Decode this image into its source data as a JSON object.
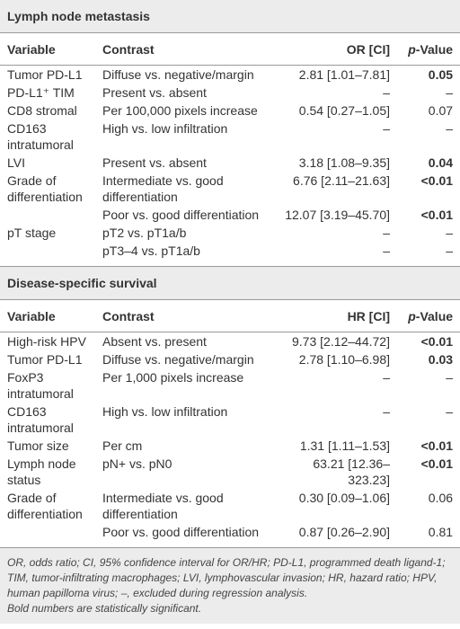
{
  "sections": [
    {
      "title": "Lymph node metastasis",
      "columns": [
        "Variable",
        "Contrast",
        "OR [CI]",
        "p-Value"
      ],
      "rows": [
        {
          "cells": [
            "Tumor PD-L1",
            "Diffuse vs. negative/margin",
            "2.81 [1.01–7.81]",
            "0.05"
          ],
          "bold": true
        },
        {
          "cells": [
            "PD-L1⁺ TIM",
            "Present vs. absent",
            "–",
            "–"
          ],
          "bold": false
        },
        {
          "cells": [
            "CD8 stromal",
            "Per 100,000 pixels increase",
            "0.54 [0.27–1.05]",
            "0.07"
          ],
          "bold": false
        },
        {
          "cells": [
            "CD163 intratumoral",
            "High vs. low infiltration",
            "–",
            "–"
          ],
          "bold": false
        },
        {
          "cells": [
            "LVI",
            "Present vs. absent",
            "3.18 [1.08–9.35]",
            "0.04"
          ],
          "bold": true
        },
        {
          "cells": [
            "Grade of differentiation",
            "Intermediate vs. good differentiation",
            "6.76 [2.11–21.63]",
            "<0.01"
          ],
          "bold": true
        },
        {
          "cells": [
            null,
            "Poor vs. good differentiation",
            "12.07 [3.19–45.70]",
            "<0.01"
          ],
          "bold": true
        },
        {
          "cells": [
            "pT stage",
            "pT2 vs. pT1a/b",
            "–",
            "–"
          ],
          "bold": false
        },
        {
          "cells": [
            null,
            "pT3–4 vs. pT1a/b",
            "–",
            "–"
          ],
          "bold": false
        }
      ]
    },
    {
      "title": "Disease-specific survival",
      "columns": [
        "Variable",
        "Contrast",
        "HR [CI]",
        "p-Value"
      ],
      "rows": [
        {
          "cells": [
            "High-risk HPV",
            "Absent vs. present",
            "9.73 [2.12–44.72]",
            "<0.01"
          ],
          "bold": true
        },
        {
          "cells": [
            "Tumor PD-L1",
            "Diffuse vs. negative/margin",
            "2.78 [1.10–6.98]",
            "0.03"
          ],
          "bold": true
        },
        {
          "cells": [
            "FoxP3 intratumoral",
            "Per 1,000 pixels increase",
            "–",
            "–"
          ],
          "bold": false
        },
        {
          "cells": [
            "CD163 intratumoral",
            "High vs. low infiltration",
            "–",
            "–"
          ],
          "bold": false
        },
        {
          "cells": [
            "Tumor size",
            "Per cm",
            "1.31 [1.11–1.53]",
            "<0.01"
          ],
          "bold": true
        },
        {
          "cells": [
            "Lymph node status",
            "pN+ vs. pN0",
            "63.21 [12.36–323.23]",
            "<0.01"
          ],
          "bold": true
        },
        {
          "cells": [
            "Grade of differentiation",
            "Intermediate vs. good differentiation",
            "0.30 [0.09–1.06]",
            "0.06"
          ],
          "bold": false
        },
        {
          "cells": [
            null,
            "Poor vs. good differentiation",
            "0.87 [0.26–2.90]",
            "0.81"
          ],
          "bold": false
        }
      ]
    }
  ],
  "footnote": [
    "OR, odds ratio; CI, 95% confidence interval for OR/HR; PD-L1, programmed death ligand-1; TIM, tumor-infiltrating macrophages; LVI, lymphovascular invasion; HR, hazard ratio; HPV, human papilloma virus; –, excluded during regression analysis.",
    "Bold numbers are statistically significant."
  ]
}
